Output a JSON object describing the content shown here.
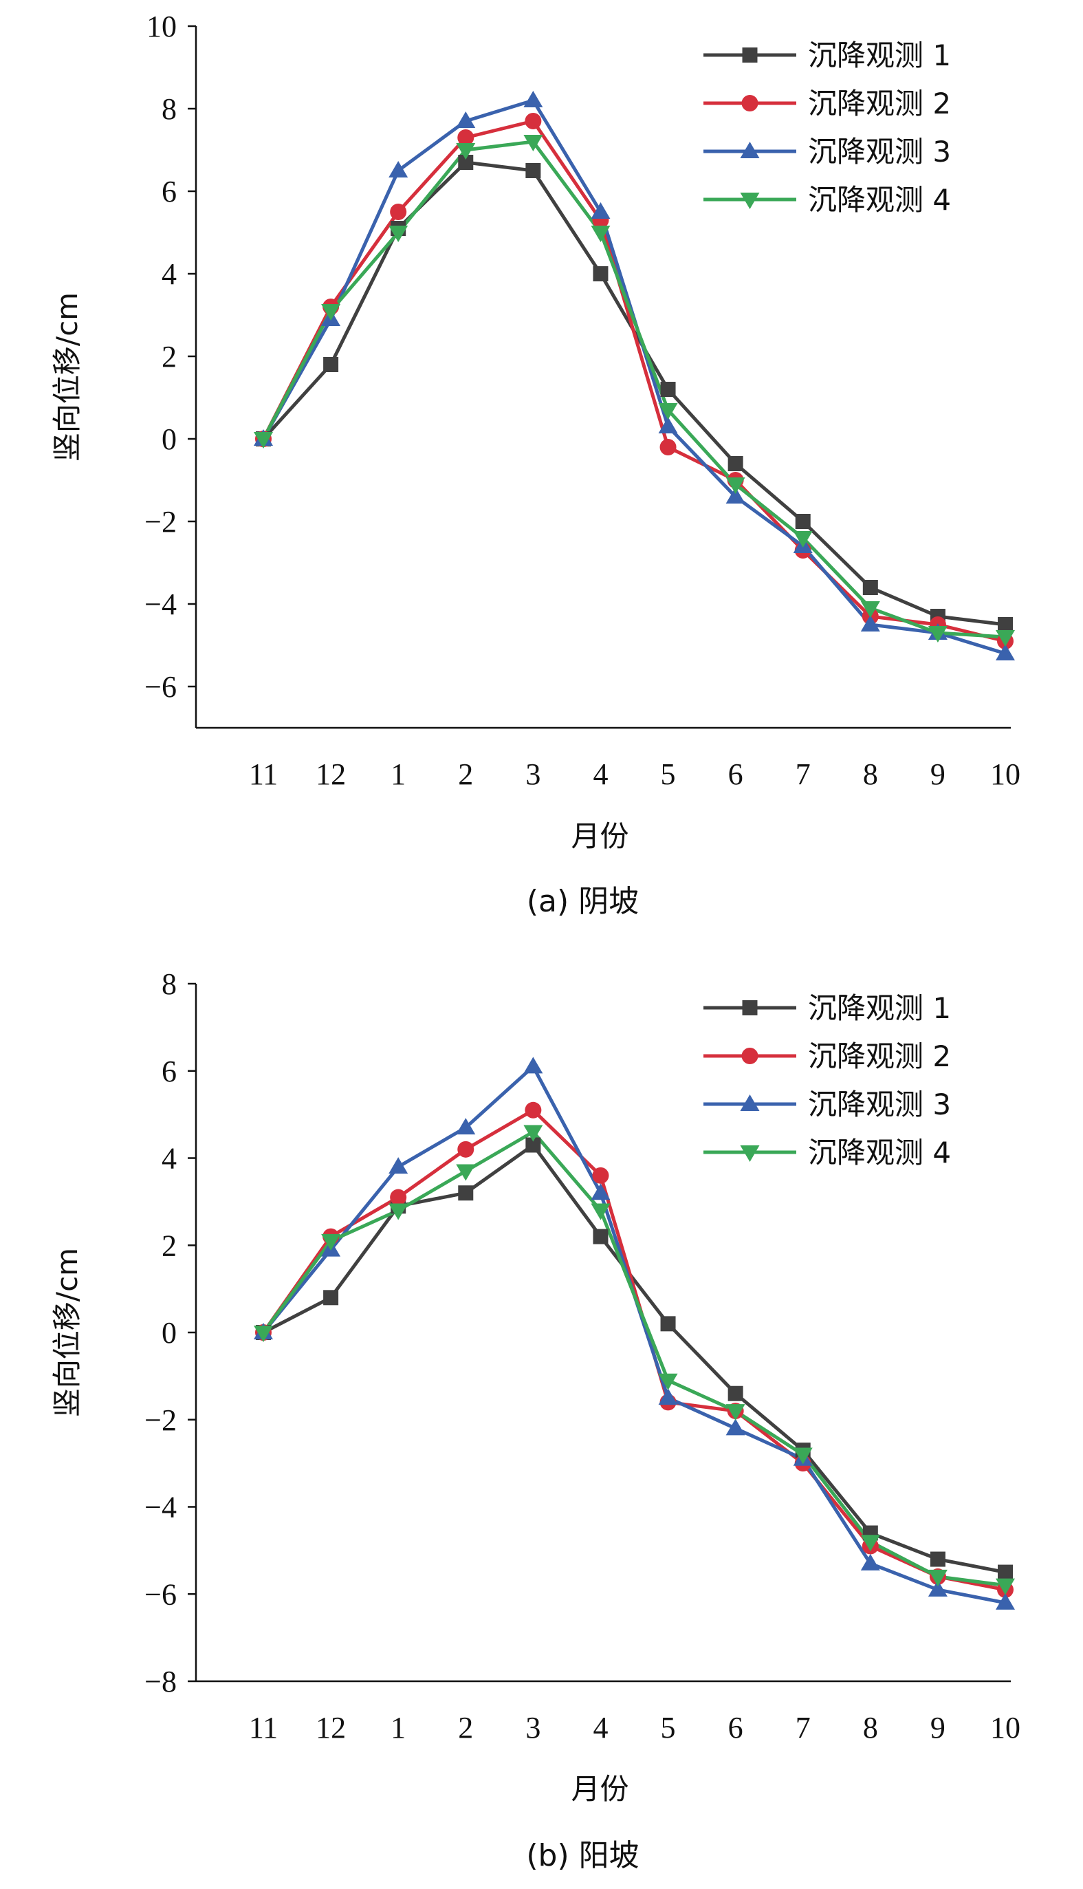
{
  "chart_data": [
    {
      "type": "line",
      "caption": "(a) 阴坡",
      "xlabel": "月份",
      "ylabel": "竖向位移/cm",
      "categories": [
        "11",
        "12",
        "1",
        "2",
        "3",
        "4",
        "5",
        "6",
        "7",
        "8",
        "9",
        "10"
      ],
      "ylim": [
        -7,
        10
      ],
      "yticks": [
        -6,
        -4,
        -2,
        0,
        2,
        4,
        6,
        8,
        10
      ],
      "legend_position": "top-right",
      "grid": false,
      "series": [
        {
          "name": "沉降观测 1",
          "marker": "square",
          "color": "#404040",
          "values": [
            0,
            1.8,
            5.1,
            6.7,
            6.5,
            4.0,
            1.2,
            -0.6,
            -2.0,
            -3.6,
            -4.3,
            -4.5
          ]
        },
        {
          "name": "沉降观测 2",
          "marker": "circle",
          "color": "#d62f3c",
          "values": [
            0,
            3.2,
            5.5,
            7.3,
            7.7,
            5.3,
            -0.2,
            -1.0,
            -2.7,
            -4.3,
            -4.5,
            -4.9
          ]
        },
        {
          "name": "沉降观测 3",
          "marker": "triangle-up",
          "color": "#3a62ad",
          "values": [
            0,
            2.9,
            6.5,
            7.7,
            8.2,
            5.5,
            0.3,
            -1.4,
            -2.6,
            -4.5,
            -4.7,
            -5.2
          ]
        },
        {
          "name": "沉降观测 4",
          "marker": "triangle-down",
          "color": "#3aa857",
          "values": [
            0,
            3.1,
            5.0,
            7.0,
            7.2,
            5.0,
            0.7,
            -1.1,
            -2.4,
            -4.1,
            -4.7,
            -4.8
          ]
        }
      ]
    },
    {
      "type": "line",
      "caption": "(b) 阳坡",
      "xlabel": "月份",
      "ylabel": "竖向位移/cm",
      "categories": [
        "11",
        "12",
        "1",
        "2",
        "3",
        "4",
        "5",
        "6",
        "7",
        "8",
        "9",
        "10"
      ],
      "ylim": [
        -8,
        8
      ],
      "yticks": [
        -8,
        -6,
        -4,
        -2,
        0,
        2,
        4,
        6,
        8
      ],
      "legend_position": "top-right",
      "grid": false,
      "series": [
        {
          "name": "沉降观测 1",
          "marker": "square",
          "color": "#404040",
          "values": [
            0,
            0.8,
            2.9,
            3.2,
            4.3,
            2.2,
            0.2,
            -1.4,
            -2.7,
            -4.6,
            -5.2,
            -5.5
          ]
        },
        {
          "name": "沉降观测 2",
          "marker": "circle",
          "color": "#d62f3c",
          "values": [
            0,
            2.2,
            3.1,
            4.2,
            5.1,
            3.6,
            -1.6,
            -1.8,
            -3.0,
            -4.9,
            -5.6,
            -5.9
          ]
        },
        {
          "name": "沉降观测 3",
          "marker": "triangle-up",
          "color": "#3a62ad",
          "values": [
            0,
            1.9,
            3.8,
            4.7,
            6.1,
            3.2,
            -1.5,
            -2.2,
            -2.9,
            -5.3,
            -5.9,
            -6.2
          ]
        },
        {
          "name": "沉降观测 4",
          "marker": "triangle-down",
          "color": "#3aa857",
          "values": [
            0,
            2.1,
            2.8,
            3.7,
            4.6,
            2.8,
            -1.1,
            -1.8,
            -2.8,
            -4.8,
            -5.6,
            -5.8
          ]
        }
      ]
    }
  ]
}
